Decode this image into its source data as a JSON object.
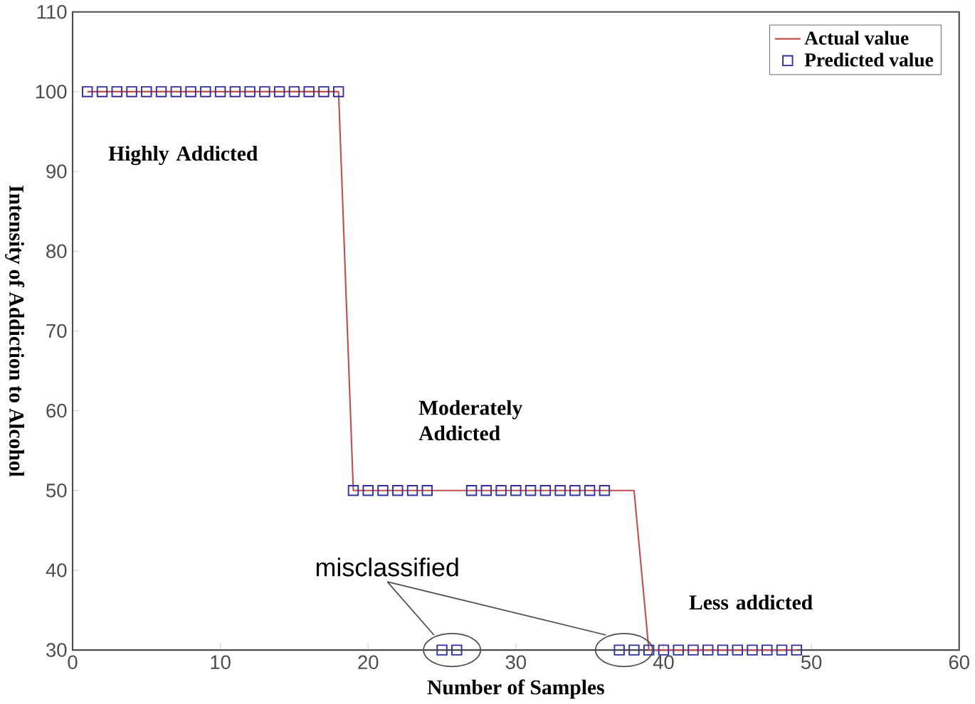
{
  "chart_data": {
    "type": "line",
    "xlabel": "Number of Samples",
    "ylabel": "Intensity of Addiction to Alcohol",
    "xlim": [
      0,
      60
    ],
    "xticks": [
      0,
      10,
      20,
      30,
      40,
      50,
      60
    ],
    "ylim": [
      30,
      110
    ],
    "yticks": [
      30,
      40,
      50,
      60,
      70,
      80,
      90,
      100,
      110
    ],
    "grid": false,
    "legend": "top right",
    "series": [
      {
        "name": "Actual value",
        "color": "#c0504d",
        "marker": "none",
        "x": [
          1,
          18,
          19,
          38,
          39,
          49
        ],
        "values": [
          100,
          100,
          50,
          50,
          30,
          30
        ]
      },
      {
        "name": "Predicted value",
        "type": "scatter",
        "color": "#3030a0",
        "marker": "square",
        "x": [
          1,
          2,
          3,
          4,
          5,
          6,
          7,
          8,
          9,
          10,
          11,
          12,
          13,
          14,
          15,
          16,
          17,
          18,
          19,
          20,
          21,
          22,
          23,
          24,
          25,
          26,
          27,
          28,
          29,
          30,
          31,
          32,
          33,
          34,
          35,
          36,
          37,
          38,
          39,
          40,
          41,
          42,
          43,
          44,
          45,
          46,
          47,
          48,
          49
        ],
        "values": [
          100,
          100,
          100,
          100,
          100,
          100,
          100,
          100,
          100,
          100,
          100,
          100,
          100,
          100,
          100,
          100,
          100,
          100,
          50,
          50,
          50,
          50,
          50,
          50,
          30,
          30,
          50,
          50,
          50,
          50,
          50,
          50,
          50,
          50,
          50,
          50,
          30,
          30,
          30,
          30,
          30,
          30,
          30,
          30,
          30,
          30,
          30,
          30,
          30
        ]
      }
    ],
    "annotations": [
      "Highly Addicted",
      "Moderately Addicted",
      "Less addicted",
      "misclassified"
    ]
  }
}
